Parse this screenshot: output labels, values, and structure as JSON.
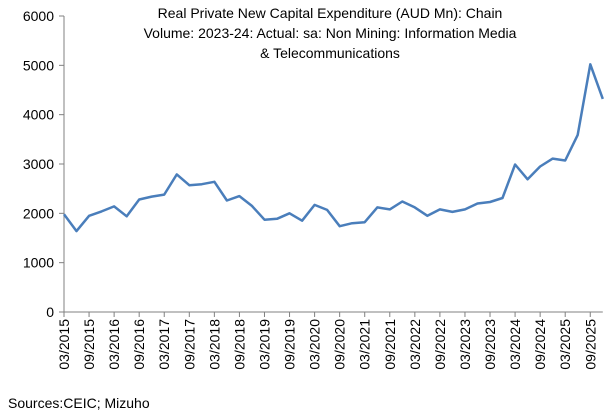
{
  "chart_data": {
    "type": "line",
    "title": [
      "Real Private New Capital Expenditure (AUD Mn): Chain",
      "Volume: 2023-24: Actual: sa: Non Mining: Information Media",
      "& Telecommunications"
    ],
    "source": "Sources:CEIC; Mizuho",
    "categories": [
      "03/2015",
      null,
      "09/2015",
      null,
      "03/2016",
      null,
      "09/2016",
      null,
      "03/2017",
      null,
      "09/2017",
      null,
      "03/2018",
      null,
      "09/2018",
      null,
      "03/2019",
      null,
      "09/2019",
      null,
      "03/2020",
      null,
      "09/2020",
      null,
      "03/2021",
      null,
      "09/2021",
      null,
      "03/2022",
      null,
      "09/2022",
      null,
      "03/2023",
      null,
      "09/2023",
      null,
      "03/2024",
      null,
      "09/2024",
      null,
      "03/2025",
      null,
      "09/2025",
      null
    ],
    "series": [
      {
        "color": "#4a7ebb",
        "values": [
          1980,
          1640,
          1950,
          2040,
          2140,
          1940,
          2280,
          2340,
          2380,
          2790,
          2570,
          2590,
          2640,
          2260,
          2350,
          2150,
          1870,
          1890,
          2000,
          1850,
          2170,
          2070,
          1740,
          1800,
          1820,
          2120,
          2080,
          2240,
          2120,
          1950,
          2080,
          2030,
          2080,
          2200,
          2230,
          2310,
          2990,
          2690,
          2950,
          3110,
          3070,
          3590,
          5020,
          4320
        ]
      }
    ],
    "ylim": [
      0,
      6000
    ],
    "yticks": [
      0,
      1000,
      2000,
      3000,
      4000,
      5000,
      6000
    ],
    "grid": false
  }
}
